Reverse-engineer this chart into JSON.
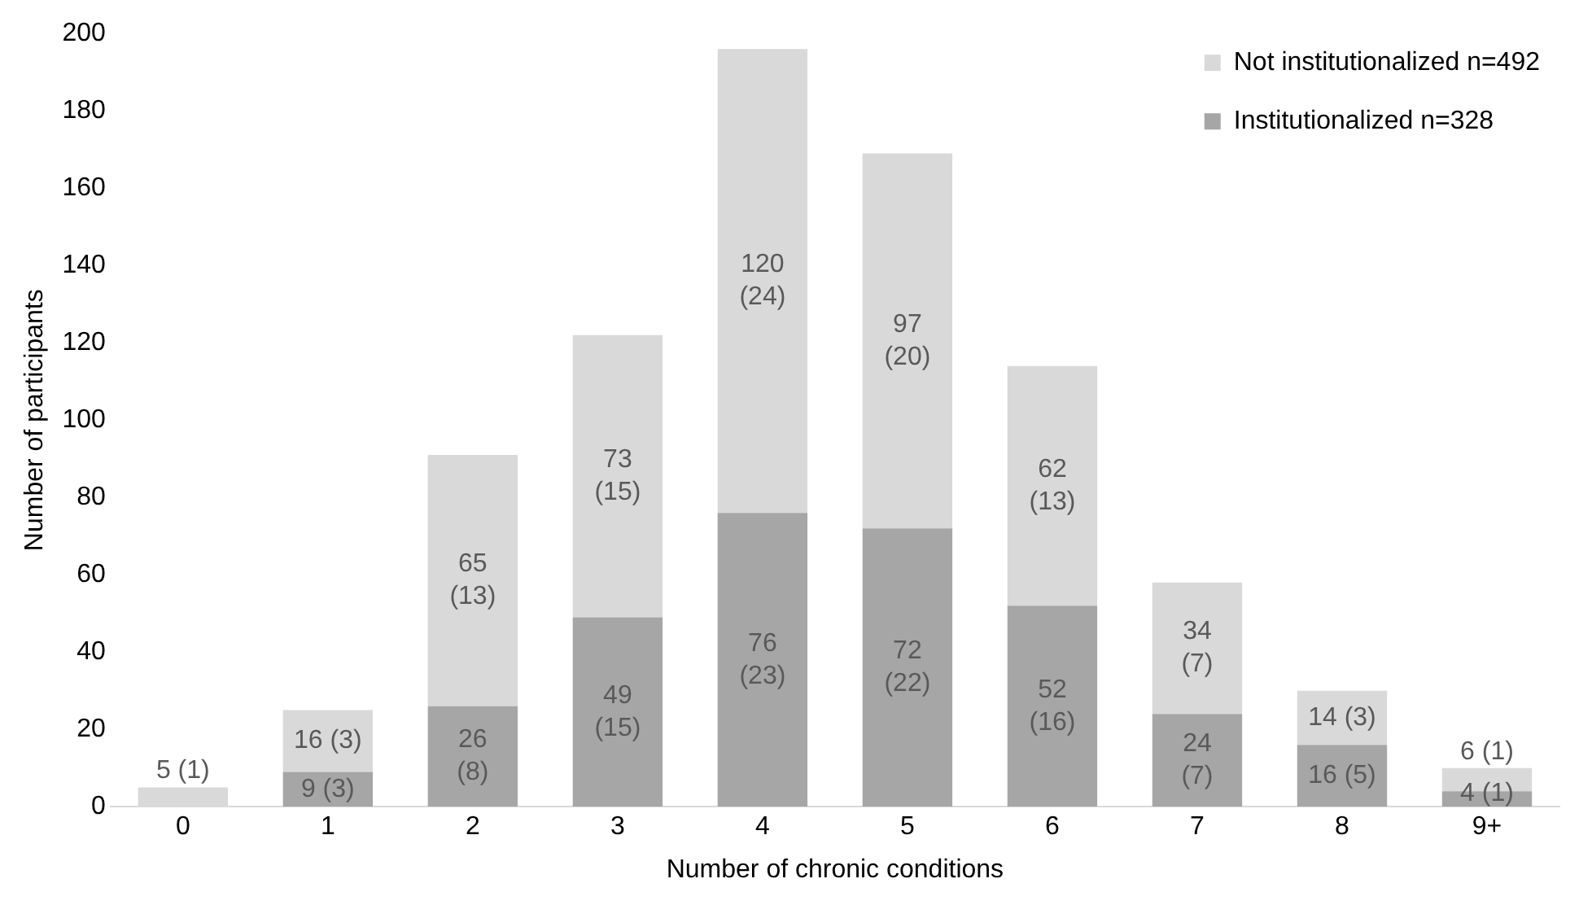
{
  "chart_data": {
    "type": "bar",
    "stacked": true,
    "xlabel": "Number of chronic conditions",
    "ylabel": "Number of participants",
    "categories": [
      "0",
      "1",
      "2",
      "3",
      "4",
      "5",
      "6",
      "7",
      "8",
      "9+"
    ],
    "series": [
      {
        "name": "Institutionalized n=328",
        "color": "#a6a6a6",
        "values": [
          0,
          9,
          26,
          49,
          76,
          72,
          52,
          24,
          16,
          4
        ],
        "value_labels": [
          null,
          "9 (3)",
          "26 (8)",
          "49 (15)",
          "76 (23)",
          "72 (22)",
          "52 (16)",
          "24 (7)",
          "16 (5)",
          "4 (1)"
        ]
      },
      {
        "name": "Not institutionalized n=492",
        "color": "#d9d9d9",
        "values": [
          5,
          16,
          65,
          73,
          120,
          97,
          62,
          34,
          14,
          6
        ],
        "value_labels": [
          "5 (1)",
          "16 (3)",
          "65 (13)",
          "73 (15)",
          "120 (24)",
          "97 (20)",
          "62 (13)",
          "34 (7)",
          "14 (3)",
          "6 (1)"
        ]
      }
    ],
    "ylim": [
      0,
      200
    ],
    "yticks": [
      0,
      20,
      40,
      60,
      80,
      100,
      120,
      140,
      160,
      180,
      200
    ],
    "grid": false,
    "legend": "top right"
  }
}
